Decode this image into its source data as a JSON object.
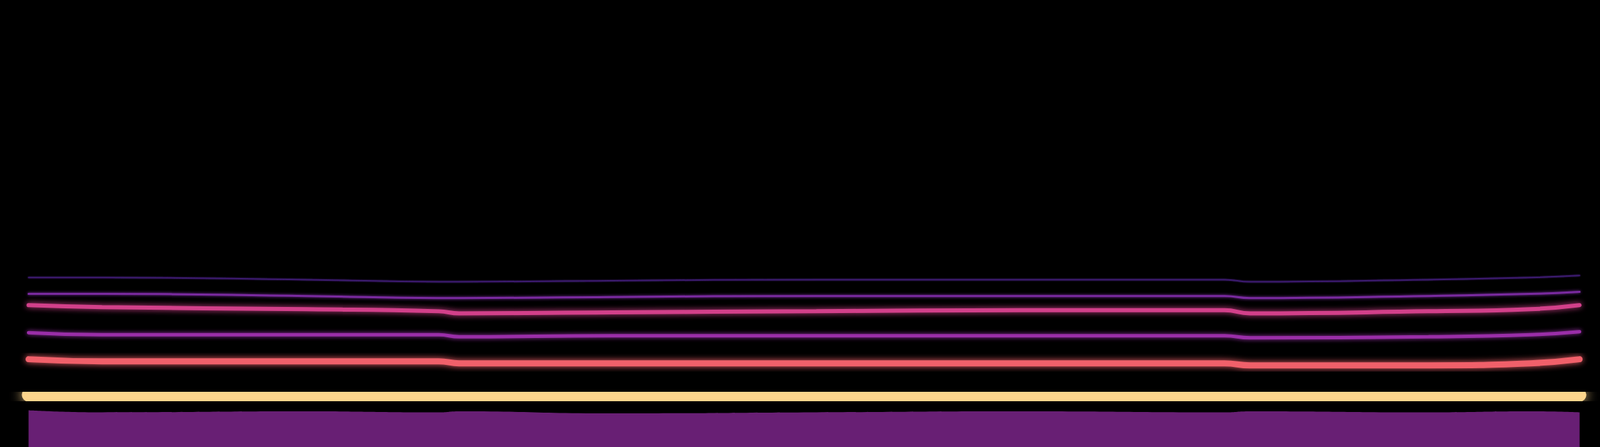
{
  "chart_data": {
    "type": "line",
    "tick_labels": false,
    "grid": false,
    "xlim": [
      0,
      1568
    ],
    "ylim": [
      0,
      438
    ],
    "x": [
      28,
      100,
      300,
      430,
      450,
      600,
      800,
      1000,
      1200,
      1225,
      1400,
      1500,
      1548
    ],
    "series": [
      {
        "type": "area",
        "color": "#7a2488",
        "values": [
          36,
          34,
          35,
          34,
          35,
          33,
          34,
          35,
          34,
          35,
          34,
          35,
          34
        ]
      },
      {
        "type": "line",
        "color": "#fcd58c",
        "values": [
          51,
          50,
          50,
          50,
          49,
          49,
          49,
          49,
          49,
          48,
          48,
          49,
          51
        ]
      },
      {
        "type": "line",
        "color": "#f0606a",
        "values": [
          86,
          84,
          84,
          84,
          82,
          82,
          82,
          82,
          82,
          80,
          80,
          82,
          86
        ]
      },
      {
        "type": "line",
        "color": "#9a2fa8",
        "values": [
          112,
          110,
          110,
          110,
          108,
          109,
          109,
          109,
          109,
          107,
          108,
          110,
          113
        ]
      },
      {
        "type": "line",
        "color": "#d2408a",
        "values": [
          139,
          137,
          135,
          133,
          131,
          132,
          133,
          134,
          134,
          131,
          133,
          135,
          139
        ]
      },
      {
        "type": "line",
        "color": "#7a2aa0",
        "values": [
          150,
          150,
          148,
          146,
          146,
          147,
          148,
          148,
          148,
          146,
          148,
          150,
          152
        ]
      },
      {
        "type": "line",
        "color": "#3c1a70",
        "values": [
          166,
          166,
          164,
          162,
          162,
          163,
          164,
          164,
          164,
          162,
          164,
          166,
          168
        ]
      }
    ]
  }
}
